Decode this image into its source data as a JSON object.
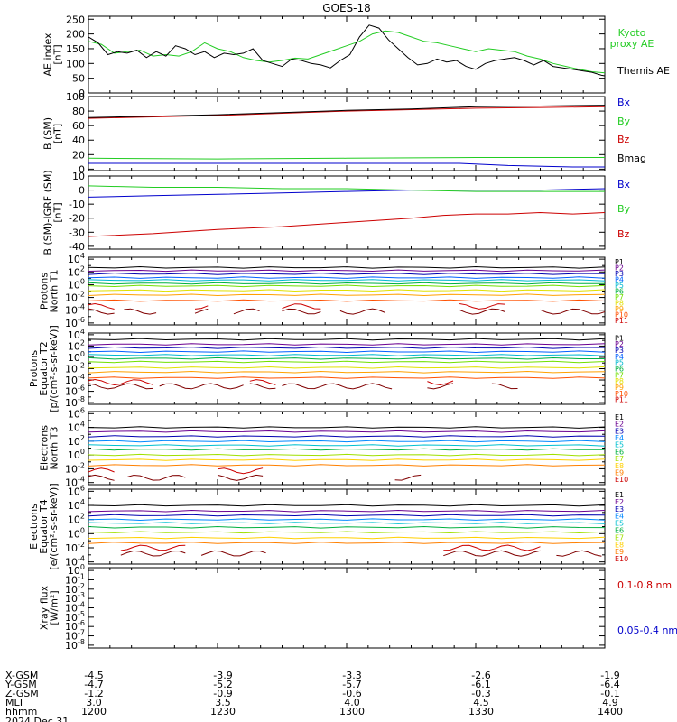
{
  "title": "GOES-18",
  "colors": {
    "black": "#000000",
    "green": "#22cc22",
    "blue": "#0000cc",
    "red": "#cc0000",
    "P": [
      "#000000",
      "#6a0090",
      "#0000b0",
      "#0060ff",
      "#00b8d0",
      "#00b040",
      "#70e000",
      "#e0e000",
      "#ffa000",
      "#ff5000",
      "#cc0000",
      "#800000"
    ],
    "E": [
      "#000000",
      "#6a0090",
      "#0000b0",
      "#0088ff",
      "#00c0d0",
      "#00b040",
      "#a0e000",
      "#ffd000",
      "#ff8000",
      "#cc0000",
      "#800000"
    ]
  },
  "chart_data": [
    {
      "type": "line",
      "name": "ae",
      "ylabel": [
        "AE index",
        "[nT]"
      ],
      "yticks": [
        "250",
        "200",
        "150",
        "100",
        "50",
        "0"
      ],
      "ylim": [
        0,
        260
      ],
      "series": [
        {
          "name": "Kyoto proxy AE",
          "label_lines": [
            "Kyoto",
            "proxy AE"
          ],
          "color": "green",
          "x": [
            0,
            4,
            8,
            12,
            16,
            20,
            24,
            28,
            32,
            36,
            40,
            44,
            48,
            52,
            56,
            60,
            64,
            68,
            72,
            76,
            80,
            84,
            88,
            92,
            96,
            100,
            104,
            108,
            112,
            116,
            120,
            124,
            128,
            132,
            136,
            140,
            144,
            148,
            152,
            156,
            160
          ],
          "y": [
            175,
            165,
            135,
            140,
            145,
            125,
            130,
            125,
            140,
            170,
            150,
            140,
            120,
            110,
            105,
            110,
            118,
            115,
            130,
            145,
            160,
            175,
            200,
            210,
            205,
            190,
            175,
            170,
            160,
            150,
            140,
            150,
            145,
            140,
            125,
            115,
            100,
            90,
            80,
            72,
            68
          ]
        },
        {
          "name": "Themis AE",
          "label_lines": [
            "Themis AE"
          ],
          "color": "black",
          "x": [
            0,
            3,
            6,
            9,
            12,
            15,
            18,
            21,
            24,
            27,
            30,
            33,
            36,
            39,
            42,
            45,
            48,
            51,
            54,
            57,
            60,
            63,
            66,
            69,
            72,
            75,
            78,
            81,
            84,
            87,
            90,
            93,
            96,
            99,
            102,
            105,
            108,
            111,
            114,
            117,
            120,
            123,
            126,
            129,
            132,
            135,
            138,
            141,
            144,
            147,
            150,
            153,
            156,
            159,
            160
          ],
          "y": [
            190,
            170,
            130,
            140,
            135,
            145,
            120,
            140,
            125,
            160,
            150,
            130,
            140,
            120,
            135,
            130,
            135,
            150,
            110,
            100,
            90,
            115,
            110,
            100,
            95,
            85,
            110,
            130,
            190,
            230,
            220,
            180,
            150,
            120,
            95,
            100,
            115,
            105,
            110,
            90,
            80,
            100,
            110,
            115,
            120,
            110,
            95,
            110,
            90,
            85,
            80,
            75,
            70,
            60,
            58
          ]
        }
      ]
    },
    {
      "type": "line",
      "name": "b_sm",
      "ylabel": [
        "B (SM)",
        "[nT]"
      ],
      "yticks": [
        "100",
        "80",
        "60",
        "40",
        "20",
        "0"
      ],
      "ylim": [
        -2,
        100
      ],
      "series": [
        {
          "name": "Bx",
          "color": "blue",
          "x": [
            0,
            40,
            80,
            100,
            115,
            130,
            150,
            160
          ],
          "y": [
            8,
            8,
            8,
            8,
            8,
            5,
            3,
            3
          ]
        },
        {
          "name": "By",
          "color": "green",
          "x": [
            0,
            40,
            80,
            120,
            160
          ],
          "y": [
            15,
            14,
            15,
            16,
            16
          ]
        },
        {
          "name": "Bz",
          "color": "red",
          "x": [
            0,
            20,
            40,
            60,
            80,
            100,
            120,
            140,
            160
          ],
          "y": [
            70,
            72,
            74,
            77,
            80,
            82,
            84,
            85,
            86
          ]
        },
        {
          "name": "Bmag",
          "color": "black",
          "x": [
            0,
            20,
            40,
            60,
            80,
            100,
            120,
            140,
            160
          ],
          "y": [
            71,
            73,
            75,
            78,
            81,
            83,
            86,
            87,
            88
          ]
        }
      ]
    },
    {
      "type": "line",
      "name": "b_igrf",
      "ylabel": [
        "B (SM)-IGRF (SM)",
        "[nT]"
      ],
      "yticks": [
        "10",
        "0",
        "-10",
        "-20",
        "-30",
        "-40"
      ],
      "ylim": [
        -42,
        10
      ],
      "series": [
        {
          "name": "Bx",
          "color": "blue",
          "x": [
            0,
            20,
            40,
            60,
            80,
            100,
            120,
            140,
            160
          ],
          "y": [
            -5,
            -4,
            -3,
            -2,
            -1,
            0,
            0,
            0,
            1
          ]
        },
        {
          "name": "By",
          "color": "green",
          "x": [
            0,
            20,
            40,
            60,
            80,
            100,
            120,
            140,
            160
          ],
          "y": [
            3,
            2,
            2,
            1,
            1,
            0,
            -1,
            -1,
            -1
          ]
        },
        {
          "name": "Bz",
          "color": "red",
          "x": [
            0,
            20,
            40,
            60,
            80,
            100,
            110,
            120,
            130,
            140,
            150,
            160
          ],
          "y": [
            -33,
            -31,
            -28,
            -26,
            -23,
            -20,
            -18,
            -17,
            -17,
            -16,
            -17,
            -16
          ]
        }
      ]
    },
    {
      "type": "line",
      "name": "protons_t1",
      "ylabel": [
        "Protons",
        "North T1"
      ],
      "log": true,
      "yticks": [
        "10^4",
        "10^2",
        "10^0",
        "10^-2",
        "10^-4",
        "10^-6"
      ],
      "ylim_exp": [
        -6.3,
        4.3
      ],
      "channels": [
        "P1",
        "P2",
        "P3",
        "P4",
        "P5",
        "P6",
        "P7",
        "P8",
        "P9",
        "P10",
        "P11"
      ],
      "levels": [
        2.7,
        2.2,
        1.7,
        1.1,
        0.7,
        0.2,
        -0.2,
        -0.9,
        -1.6,
        -2.5,
        -3.4,
        -4.2
      ],
      "gaps": [
        [
          0,
          8
        ],
        [
          11,
          22
        ],
        [
          33,
          38
        ],
        [
          45,
          53
        ],
        [
          60,
          73
        ],
        [
          78,
          92
        ],
        [
          115,
          130
        ],
        [
          140,
          160
        ]
      ]
    },
    {
      "type": "line",
      "name": "protons_t2",
      "ylabel": [
        "Protons",
        "Equator T2",
        "[p/(cm²-s-sr-keV)]"
      ],
      "log": true,
      "yticks": [
        "10^4",
        "10^2",
        "10^0",
        "10^-2",
        "10^-4",
        "10^-6",
        "10^-8"
      ],
      "ylim_exp": [
        -8.3,
        4.3
      ],
      "channels": [
        "P1",
        "P2",
        "P3",
        "P4",
        "P5",
        "P6",
        "P7",
        "P8",
        "P9",
        "P10",
        "P11"
      ],
      "levels": [
        3.2,
        2.3,
        1.7,
        1.0,
        0.4,
        -0.2,
        -0.8,
        -1.8,
        -2.6,
        -3.6,
        -4.4,
        -5.1
      ],
      "gaps": [
        [
          0,
          20
        ],
        [
          22,
          48
        ],
        [
          50,
          58
        ],
        [
          60,
          95
        ],
        [
          105,
          113
        ],
        [
          125,
          133
        ]
      ]
    },
    {
      "type": "line",
      "name": "electrons_t3",
      "ylabel": [
        "Electrons",
        "North T3"
      ],
      "log": true,
      "yticks": [
        "10^6",
        "10^4",
        "10^2",
        "10^0",
        "10^-2",
        "10^-4"
      ],
      "ylim_exp": [
        -4.3,
        6.3
      ],
      "channels": [
        "E1",
        "E2",
        "E3",
        "E4",
        "E5",
        "E6",
        "E7",
        "E8",
        "E9",
        "E10"
      ],
      "levels": [
        4.0,
        3.4,
        2.7,
        2.0,
        1.4,
        0.8,
        0.0,
        -0.7,
        -1.5,
        -2.3,
        -3.3
      ],
      "gaps": [
        [
          0,
          8
        ],
        [
          12,
          30
        ],
        [
          40,
          55
        ],
        [
          95,
          103
        ]
      ]
    },
    {
      "type": "line",
      "name": "electrons_t4",
      "ylabel": [
        "Electrons",
        "Equator T4",
        "[e/(cm²-s-sr-keV)]"
      ],
      "log": true,
      "yticks": [
        "10^6",
        "10^4",
        "10^2",
        "10^0",
        "10^-2",
        "10^-4"
      ],
      "ylim_exp": [
        -4.3,
        6.3
      ],
      "channels": [
        "E1",
        "E2",
        "E3",
        "E4",
        "E5",
        "E6",
        "E7",
        "E8",
        "E9",
        "E10"
      ],
      "levels": [
        4.0,
        3.2,
        2.6,
        2.0,
        1.5,
        0.9,
        0.2,
        -0.6,
        -1.3,
        -2.0,
        -2.8
      ],
      "gaps": [
        [
          10,
          30
        ],
        [
          35,
          55
        ],
        [
          110,
          140
        ],
        [
          145,
          160
        ]
      ]
    },
    {
      "type": "line",
      "name": "xray",
      "ylabel": [
        "Xray flux",
        "[W/m²]"
      ],
      "log": true,
      "yticks": [
        "10^0",
        "10^-1",
        "10^-2",
        "10^-3",
        "10^-4",
        "10^-5",
        "10^-6",
        "10^-7",
        "10^-8"
      ],
      "ylim_exp": [
        -8.3,
        0.3
      ],
      "series": [
        {
          "name": "0.1-0.8 nm",
          "color": "red"
        },
        {
          "name": "0.05-0.4 nm",
          "color": "blue"
        }
      ]
    }
  ],
  "xaxis": {
    "range_min": [
      0,
      120
    ],
    "ticks_min": [
      0,
      30,
      60,
      90,
      120
    ],
    "rows": [
      {
        "label": "X-GSM",
        "values": [
          "-4.5",
          "-3.9",
          "-3.3",
          "-2.6",
          "-1.9"
        ]
      },
      {
        "label": "Y-GSM",
        "values": [
          "-4.7",
          "-5.2",
          "-5.7",
          "-6.1",
          "-6.4"
        ]
      },
      {
        "label": "Z-GSM",
        "values": [
          "-1.2",
          "-0.9",
          "-0.6",
          "-0.3",
          "-0.1"
        ]
      },
      {
        "label": "MLT",
        "values": [
          "3.0",
          "3.5",
          "4.0",
          "4.5",
          "4.9"
        ]
      },
      {
        "label": "hhmm",
        "values": [
          "1200",
          "1230",
          "1300",
          "1330",
          "1400"
        ]
      }
    ],
    "date": "2024 Dec 31"
  }
}
